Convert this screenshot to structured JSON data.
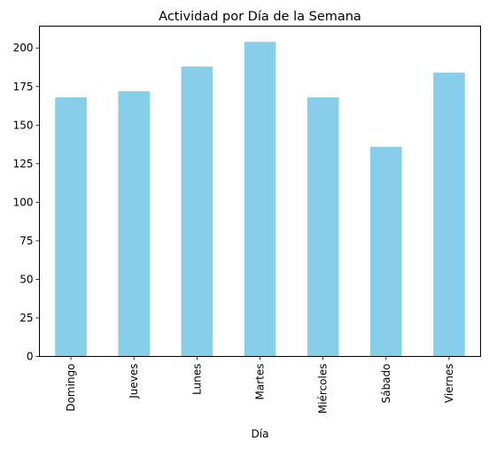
{
  "chart_data": {
    "type": "bar",
    "title": "Actividad por Día de la Semana",
    "xlabel": "Día",
    "ylabel": "",
    "categories": [
      "Domingo",
      "Jueves",
      "Lunes",
      "Martes",
      "Miércoles",
      "Sábado",
      "Viernes"
    ],
    "values": [
      168,
      172,
      188,
      204,
      168,
      136,
      184
    ],
    "ylim": [
      0,
      214.2
    ],
    "yticks": [
      0,
      25,
      50,
      75,
      100,
      125,
      150,
      175,
      200
    ],
    "grid": false,
    "legend": "none",
    "bar_color": "#87ceeb",
    "x_tick_rotation": "vertical"
  }
}
